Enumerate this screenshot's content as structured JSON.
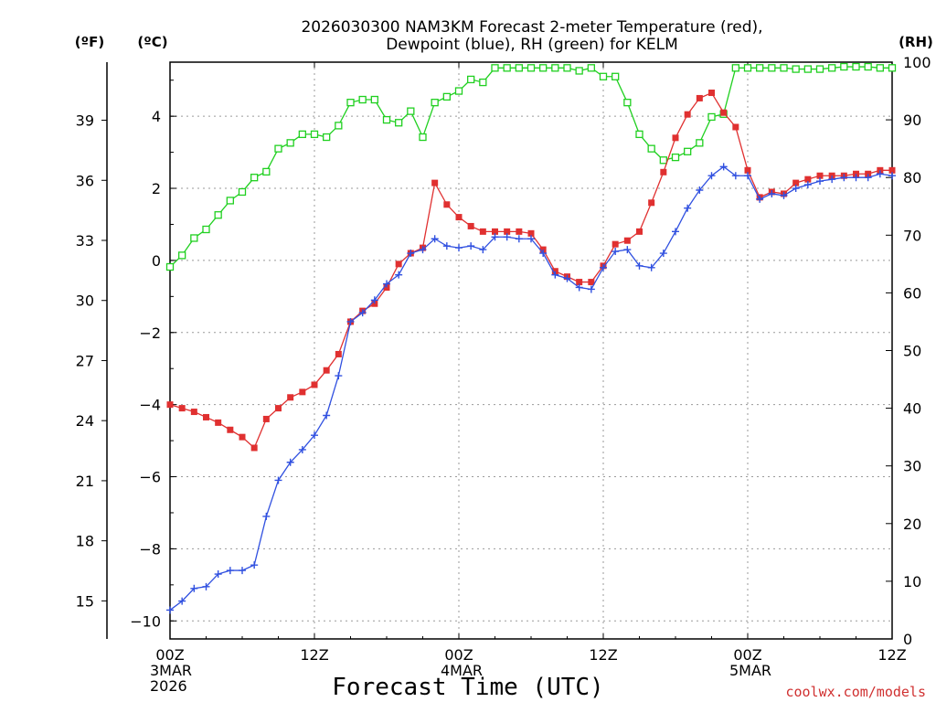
{
  "chart_data": {
    "type": "line",
    "title_lines": [
      "2026030300 NAM3KM Forecast 2-meter Temperature (red),",
      "Dewpoint (blue), RH (green) for KELM"
    ],
    "units": {
      "fahrenheit": "(ºF)",
      "celsius": "(ºC)",
      "rh": "(RH)"
    },
    "xlabel": "Forecast Time (UTC)",
    "credit": "coolwx.com/models",
    "x_range_hours": [
      0,
      60
    ],
    "x_ticks": [
      {
        "hour": 0,
        "lines": [
          "00Z",
          "3MAR",
          "2026"
        ]
      },
      {
        "hour": 12,
        "lines": [
          "12Z"
        ]
      },
      {
        "hour": 24,
        "lines": [
          "00Z",
          "4MAR"
        ]
      },
      {
        "hour": 36,
        "lines": [
          "12Z"
        ]
      },
      {
        "hour": 48,
        "lines": [
          "00Z",
          "5MAR"
        ]
      },
      {
        "hour": 60,
        "lines": [
          "12Z"
        ]
      }
    ],
    "celsius_axis": {
      "range": [
        -10.5,
        5.5
      ],
      "ticks": [
        "-10",
        "-8",
        "-6",
        "-4",
        "-2",
        "0",
        "2",
        "4"
      ]
    },
    "fahrenheit_axis": {
      "range": [
        13.1,
        41.9
      ],
      "ticks": [
        "15",
        "18",
        "21",
        "24",
        "27",
        "30",
        "33",
        "36",
        "39"
      ]
    },
    "rh_axis": {
      "range": [
        0,
        100
      ],
      "ticks": [
        "0",
        "10",
        "20",
        "30",
        "40",
        "50",
        "60",
        "70",
        "80",
        "90",
        "100"
      ]
    },
    "series": [
      {
        "name": "Temperature",
        "unit": "°C",
        "color": "#e03030",
        "marker": "filled-square",
        "x": [
          0,
          1,
          2,
          3,
          4,
          5,
          6,
          7,
          8,
          9,
          10,
          11,
          12,
          13,
          14,
          15,
          16,
          17,
          18,
          19,
          20,
          21,
          22,
          23,
          24,
          25,
          26,
          27,
          28,
          29,
          30,
          31,
          32,
          33,
          34,
          35,
          36,
          37,
          38,
          39,
          40,
          41,
          42,
          43,
          44,
          45,
          46,
          47,
          48,
          49,
          50,
          51,
          52,
          53,
          54,
          55,
          56,
          57,
          58,
          59,
          60
        ],
        "values": [
          -4.0,
          -4.1,
          -4.2,
          -4.35,
          -4.5,
          -4.7,
          -4.9,
          -5.2,
          -4.4,
          -4.1,
          -3.8,
          -3.65,
          -3.45,
          -3.05,
          -2.6,
          -1.7,
          -1.4,
          -1.2,
          -0.75,
          -0.1,
          0.2,
          0.35,
          2.15,
          1.55,
          1.2,
          0.95,
          0.8,
          0.8,
          0.8,
          0.8,
          0.75,
          0.3,
          -0.3,
          -0.45,
          -0.6,
          -0.6,
          -0.15,
          0.45,
          0.55,
          0.8,
          1.6,
          2.45,
          3.4,
          4.05,
          4.5,
          4.65,
          4.1,
          3.7,
          2.5,
          1.75,
          1.9,
          1.85,
          2.15,
          2.25,
          2.35,
          2.35,
          2.35,
          2.4,
          2.4,
          2.5,
          2.5
        ]
      },
      {
        "name": "Dewpoint",
        "unit": "°C",
        "color": "#3050e0",
        "marker": "plus",
        "x": [
          0,
          1,
          2,
          3,
          4,
          5,
          6,
          7,
          8,
          9,
          10,
          11,
          12,
          13,
          14,
          15,
          16,
          17,
          18,
          19,
          20,
          21,
          22,
          23,
          24,
          25,
          26,
          27,
          28,
          29,
          30,
          31,
          32,
          33,
          34,
          35,
          36,
          37,
          38,
          39,
          40,
          41,
          42,
          43,
          44,
          45,
          46,
          47,
          48,
          49,
          50,
          51,
          52,
          53,
          54,
          55,
          56,
          57,
          58,
          59,
          60
        ],
        "values": [
          -9.7,
          -9.45,
          -9.1,
          -9.05,
          -8.7,
          -8.6,
          -8.6,
          -8.45,
          -7.1,
          -6.1,
          -5.6,
          -5.25,
          -4.85,
          -4.3,
          -3.2,
          -1.7,
          -1.45,
          -1.1,
          -0.65,
          -0.4,
          0.2,
          0.3,
          0.6,
          0.4,
          0.35,
          0.4,
          0.3,
          0.65,
          0.65,
          0.6,
          0.6,
          0.2,
          -0.4,
          -0.5,
          -0.75,
          -0.8,
          -0.2,
          0.25,
          0.3,
          -0.15,
          -0.2,
          0.2,
          0.8,
          1.45,
          1.95,
          2.35,
          2.6,
          2.35,
          2.35,
          1.7,
          1.85,
          1.8,
          2.0,
          2.1,
          2.2,
          2.25,
          2.3,
          2.3,
          2.3,
          2.4,
          2.35
        ]
      },
      {
        "name": "RH",
        "unit": "%",
        "color": "#20d020",
        "marker": "open-square",
        "x": [
          0,
          1,
          2,
          3,
          4,
          5,
          6,
          7,
          8,
          9,
          10,
          11,
          12,
          13,
          14,
          15,
          16,
          17,
          18,
          19,
          20,
          21,
          22,
          23,
          24,
          25,
          26,
          27,
          28,
          29,
          30,
          31,
          32,
          33,
          34,
          35,
          36,
          37,
          38,
          39,
          40,
          41,
          42,
          43,
          44,
          45,
          46,
          47,
          48,
          49,
          50,
          51,
          52,
          53,
          54,
          55,
          56,
          57,
          58,
          59,
          60
        ],
        "values": [
          64.5,
          66.5,
          69.5,
          71,
          73.5,
          76,
          77.5,
          80,
          81,
          85,
          86,
          87.5,
          87.5,
          87,
          89,
          93,
          93.5,
          93.5,
          90,
          89.5,
          91.5,
          87,
          93,
          94,
          95,
          97,
          96.5,
          99,
          99,
          99,
          99,
          99,
          99,
          99,
          98.5,
          99,
          97.5,
          97.5,
          93,
          87.5,
          85,
          83,
          83.5,
          84.5,
          86,
          90.5,
          91,
          99,
          99,
          99,
          99,
          99,
          98.8,
          98.8,
          98.8,
          99,
          99.2,
          99.2,
          99.2,
          99,
          99
        ]
      }
    ]
  }
}
